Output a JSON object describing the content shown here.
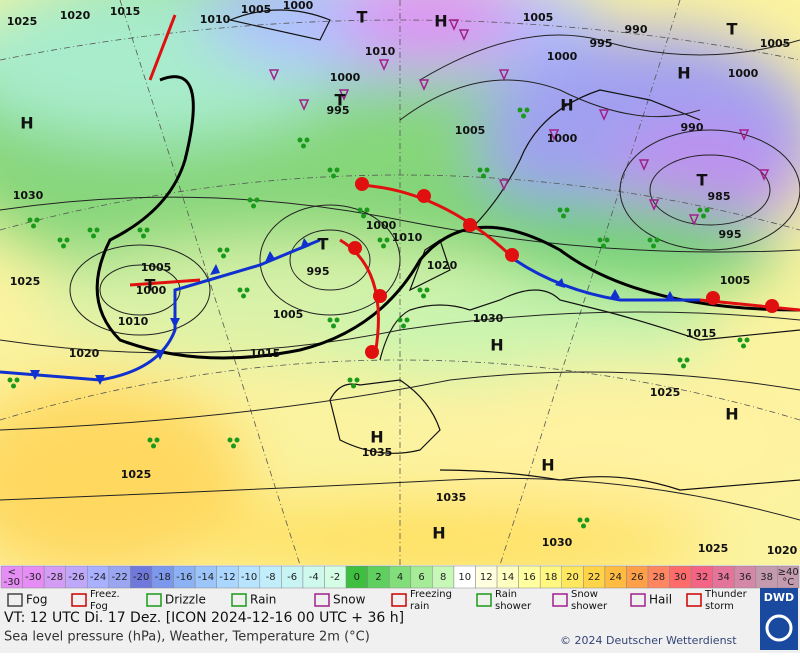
{
  "map": {
    "pressure_labels": [
      "1025",
      "1020",
      "1015",
      "1010",
      "1005",
      "1000",
      "1010",
      "1000",
      "995",
      "1005",
      "1005",
      "995",
      "990",
      "1000",
      "1000",
      "990",
      "985",
      "995",
      "1005",
      "1000",
      "1030",
      "1025",
      "1005",
      "1000",
      "1010",
      "1020",
      "1015",
      "1005",
      "995",
      "1000",
      "1010",
      "1020",
      "1030",
      "1015",
      "1005",
      "1025",
      "1035",
      "1035",
      "1025",
      "1030",
      "1025",
      "1020"
    ],
    "centers": [
      "H",
      "T",
      "T",
      "T",
      "T",
      "H",
      "H",
      "H",
      "T",
      "T",
      "H",
      "H",
      "H",
      "H",
      "H"
    ]
  },
  "temperature_scale": {
    "low_label": [
      "<",
      "-30"
    ],
    "values": [
      -30,
      -28,
      -26,
      -24,
      -22,
      -20,
      -18,
      -16,
      -14,
      -12,
      -10,
      -8,
      -6,
      -4,
      -2,
      0,
      2,
      4,
      6,
      8,
      10,
      12,
      14,
      16,
      18,
      20,
      22,
      24,
      26,
      28,
      30,
      32,
      34,
      36,
      38
    ],
    "colors": [
      "#e58cf5",
      "#d39cf5",
      "#bfa8fa",
      "#a8b0ff",
      "#9aa6f2",
      "#6f79dc",
      "#7c98ec",
      "#8cb2f5",
      "#9cc6fa",
      "#aad6ff",
      "#b8e4ff",
      "#c2eefc",
      "#c8f4f4",
      "#cef9ec",
      "#d6fde6",
      "#3fbf3f",
      "#5fcf5f",
      "#82de7a",
      "#a6ec98",
      "#c8f8b8",
      "#ffffff",
      "#ffffe0",
      "#ffffc2",
      "#ffffa0",
      "#fff780",
      "#ffe860",
      "#ffd448",
      "#ffbc40",
      "#ffa048",
      "#ff8660",
      "#ff6a6a",
      "#f46484",
      "#e4749a",
      "#d488a8",
      "#c49aae"
    ],
    "high_label": [
      "≥40",
      "°C"
    ]
  },
  "legend": [
    "Fog",
    "Freez. Fog",
    "Drizzle",
    "Rain",
    "Snow",
    "Freezing rain",
    "Rain shower",
    "Snow shower",
    "Hail",
    "Thunder storm"
  ],
  "footer": {
    "valid_time": "VT: 12 UTC Di.  17 Dez. [ICON 2024-12-16  00 UTC + 36 h]",
    "description": "Sea level pressure (hPa), Weather, Temperature 2m (°C)",
    "copyright": "© 2024 Deutscher Wetterdienst",
    "logo": "DWD"
  }
}
